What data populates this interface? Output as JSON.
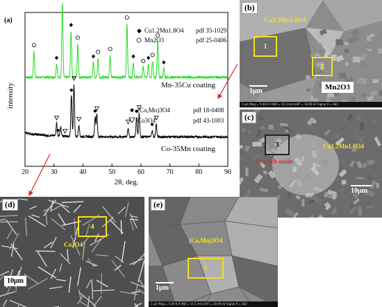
{
  "chart_data": {
    "type": "line",
    "panel_label": "(a)",
    "xlabel": "2θ, deg.",
    "ylabel": "intensity",
    "xlim": [
      20,
      90
    ],
    "x_ticks": [
      "20",
      "30",
      "40",
      "50",
      "60",
      "70",
      "80",
      "90"
    ],
    "series": [
      {
        "name": "Mn-35Cu coating",
        "color": "#22dd22",
        "peaks": [
          {
            "x": 23.1,
            "h": 0.35
          },
          {
            "x": 30.9,
            "h": 0.18
          },
          {
            "x": 32.9,
            "h": 1.0
          },
          {
            "x": 35.9,
            "h": 0.62
          },
          {
            "x": 38.2,
            "h": 0.45
          },
          {
            "x": 43.6,
            "h": 0.2
          },
          {
            "x": 45.2,
            "h": 0.26
          },
          {
            "x": 49.4,
            "h": 0.3
          },
          {
            "x": 55.2,
            "h": 0.72
          },
          {
            "x": 57.4,
            "h": 0.2
          },
          {
            "x": 60.8,
            "h": 0.14
          },
          {
            "x": 62.6,
            "h": 0.18
          },
          {
            "x": 64.0,
            "h": 0.22
          },
          {
            "x": 65.8,
            "h": 0.48
          },
          {
            "x": 67.9,
            "h": 0.12
          }
        ],
        "markers": [
          {
            "x": 23.1,
            "symbol": "circle"
          },
          {
            "x": 30.9,
            "symbol": "diamond"
          },
          {
            "x": 32.9,
            "symbol": "circle"
          },
          {
            "x": 35.9,
            "symbol": "diamond"
          },
          {
            "x": 38.2,
            "symbol": "circle"
          },
          {
            "x": 43.6,
            "symbol": "diamond"
          },
          {
            "x": 45.2,
            "symbol": "circle"
          },
          {
            "x": 49.4,
            "symbol": "circle"
          },
          {
            "x": 55.2,
            "symbol": "circle"
          },
          {
            "x": 57.4,
            "symbol": "diamond"
          },
          {
            "x": 60.8,
            "symbol": "circle"
          },
          {
            "x": 62.6,
            "symbol": "diamond"
          },
          {
            "x": 64.0,
            "symbol": "circle"
          },
          {
            "x": 65.8,
            "symbol": "circle"
          },
          {
            "x": 67.9,
            "symbol": "diamond"
          }
        ]
      },
      {
        "name": "Co-35Mn coating",
        "color": "#000000",
        "peaks": [
          {
            "x": 18.9,
            "h": 0.12
          },
          {
            "x": 30.9,
            "h": 0.2
          },
          {
            "x": 32.3,
            "h": 0.14
          },
          {
            "x": 36.0,
            "h": 0.62
          },
          {
            "x": 36.9,
            "h": 0.8
          },
          {
            "x": 38.6,
            "h": 0.18
          },
          {
            "x": 44.2,
            "h": 0.3
          },
          {
            "x": 44.8,
            "h": 0.34
          },
          {
            "x": 55.6,
            "h": 0.14
          },
          {
            "x": 58.5,
            "h": 0.3
          },
          {
            "x": 59.4,
            "h": 0.36
          },
          {
            "x": 63.9,
            "h": 0.1
          },
          {
            "x": 65.3,
            "h": 0.2
          }
        ],
        "markers": [
          {
            "x": 30.9,
            "symbol": "triangle"
          },
          {
            "x": 31.4,
            "symbol": "dot"
          },
          {
            "x": 33.8,
            "symbol": "triangle"
          },
          {
            "x": 36.0,
            "symbol": "dot"
          },
          {
            "x": 36.9,
            "symbol": "triangle"
          },
          {
            "x": 38.6,
            "symbol": "triangle"
          },
          {
            "x": 44.2,
            "symbol": "dot"
          },
          {
            "x": 44.8,
            "symbol": "triangle"
          },
          {
            "x": 55.6,
            "symbol": "triangle"
          },
          {
            "x": 58.5,
            "symbol": "dot"
          },
          {
            "x": 59.4,
            "symbol": "triangle"
          },
          {
            "x": 63.9,
            "symbol": "dot"
          },
          {
            "x": 65.3,
            "symbol": "triangle"
          }
        ]
      }
    ],
    "legend_top": [
      {
        "symbol": "diamond",
        "phase": "Cu1.2Mn1.8O4",
        "pdf": "pdf 35-1029"
      },
      {
        "symbol": "circle",
        "phase": "Mn2O3",
        "pdf": "pdf 25-0406"
      }
    ],
    "legend_bottom": [
      {
        "symbol": "dot",
        "phase": "(Co,Mn)3O4",
        "pdf": "pdf 18-0408"
      },
      {
        "symbol": "triangle",
        "phase": "Co3O4",
        "pdf": "pdf 43-1003"
      }
    ],
    "grid": false
  },
  "micrographs": {
    "b": {
      "label": "(b)",
      "phase_top": "Cu1.2Mn1.8O4",
      "zone1": "1",
      "zone2": "2",
      "scale": "1μm",
      "phase_box": "Mn2O3",
      "infobar": "1 μm    Mag = 5.00 K X    WD = 11.0 mm    EHT = 10.00 kV    Signal A = SE2"
    },
    "c": {
      "label": "(c)",
      "phase_top": "Cu1.2Mn1.8O4",
      "zone": "3",
      "phase_mid": "Cu-rich oxide",
      "scale": "10μm"
    },
    "d": {
      "label": "(d)",
      "zone": "4",
      "phase": "Co3O4",
      "scale": "10μm"
    },
    "e": {
      "label": "(e)",
      "phase": "(Co,Mn)3O4",
      "zone": "5",
      "scale": "1μm",
      "infobar": "1 μm    Mag = 5.00 K X    WD = 11.1 mm    EHT = 10.00 kV    Signal A = SE2"
    }
  },
  "colors": {
    "zone_yellow": "#f6e219",
    "green_series": "#22dd22",
    "red_label": "#ee2222",
    "pointer_arrow": "#dd2222"
  }
}
